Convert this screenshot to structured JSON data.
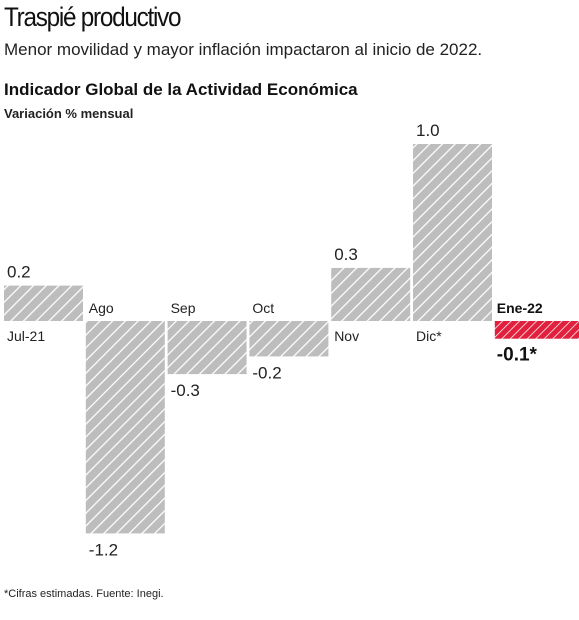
{
  "header": {
    "headline": "Traspié productivo",
    "subtitle": "Menor movilidad y mayor inflación impactaron al inicio de 2022."
  },
  "chart_header": {
    "title": "Indicador Global de la Actividad Económica",
    "subtitle": "Variación % mensual"
  },
  "footnote": "*Cifras estimadas. Fuente: Inegi.",
  "colors": {
    "bar_fill": "#bdbdbd",
    "bar_hatch": "#ffffff",
    "highlight": "#e0203d",
    "zero_line": "#ffffff"
  },
  "chart_data": {
    "type": "bar",
    "title": "Indicador Global de la Actividad Económica",
    "subtitle": "Variación % mensual",
    "categories": [
      "Jul-21",
      "Ago",
      "Sep",
      "Oct",
      "Nov",
      "Dic*",
      "Ene-22"
    ],
    "values": [
      0.2,
      -1.2,
      -0.3,
      -0.2,
      0.3,
      1.0,
      -0.1
    ],
    "value_labels": [
      "0.2",
      "-1.2",
      "-0.3",
      "-0.2",
      "0.3",
      "1.0",
      "-0.1*"
    ],
    "highlight_index": 6,
    "ylim": [
      -1.2,
      1.0
    ],
    "grid": false,
    "xlabel": "",
    "ylabel": ""
  }
}
